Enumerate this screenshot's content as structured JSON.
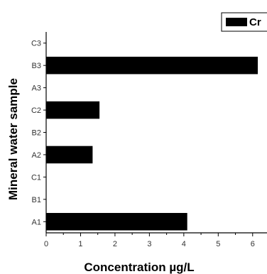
{
  "chart_data": {
    "type": "bar",
    "orientation": "horizontal",
    "categories": [
      "A1",
      "B1",
      "C1",
      "A2",
      "B2",
      "C2",
      "A3",
      "B3",
      "C3"
    ],
    "series": [
      {
        "name": "Cr",
        "values": [
          4.1,
          0,
          0,
          1.35,
          0,
          1.55,
          0,
          6.15,
          0
        ],
        "color": "#000000"
      }
    ],
    "xlabel": "Concentration µg/L",
    "ylabel": "Mineral water sample",
    "xlim": [
      0,
      6.5
    ],
    "xticks": [
      "0",
      "1",
      "2",
      "3",
      "4",
      "5",
      "6"
    ],
    "grid": false,
    "legend_position": "top-right"
  }
}
